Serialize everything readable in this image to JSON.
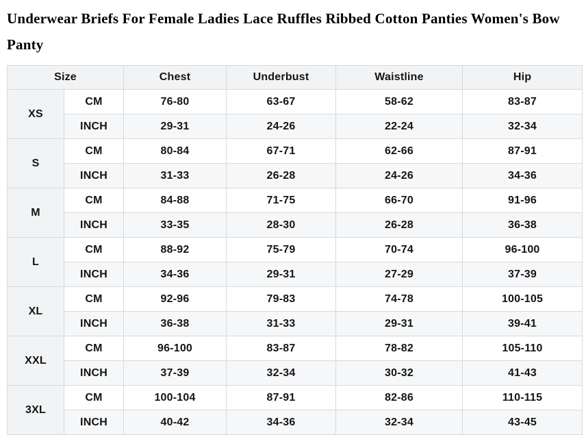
{
  "title": "Underwear Briefs For Female Ladies Lace Ruffles Ribbed Cotton Panties Women's Bow Panty",
  "colors": {
    "header_bg": "#f2f3f5",
    "alt_row_bg": "#f6f7f9",
    "border": "#d8d9db",
    "text": "#141414"
  },
  "table": {
    "headers": [
      "Size",
      "Chest",
      "Underbust",
      "Waistline",
      "Hip"
    ],
    "unit_labels": [
      "CM",
      "INCH"
    ],
    "rows": [
      {
        "size": "XS",
        "cm": [
          "76-80",
          "63-67",
          "58-62",
          "83-87"
        ],
        "inch": [
          "29-31",
          "24-26",
          "22-24",
          "32-34"
        ]
      },
      {
        "size": "S",
        "cm": [
          "80-84",
          "67-71",
          "62-66",
          "87-91"
        ],
        "inch": [
          "31-33",
          "26-28",
          "24-26",
          "34-36"
        ]
      },
      {
        "size": "M",
        "cm": [
          "84-88",
          "71-75",
          "66-70",
          "91-96"
        ],
        "inch": [
          "33-35",
          "28-30",
          "26-28",
          "36-38"
        ]
      },
      {
        "size": "L",
        "cm": [
          "88-92",
          "75-79",
          "70-74",
          "96-100"
        ],
        "inch": [
          "34-36",
          "29-31",
          "27-29",
          "37-39"
        ]
      },
      {
        "size": "XL",
        "cm": [
          "92-96",
          "79-83",
          "74-78",
          "100-105"
        ],
        "inch": [
          "36-38",
          "31-33",
          "29-31",
          "39-41"
        ]
      },
      {
        "size": "XXL",
        "cm": [
          "96-100",
          "83-87",
          "78-82",
          "105-110"
        ],
        "inch": [
          "37-39",
          "32-34",
          "30-32",
          "41-43"
        ]
      },
      {
        "size": "3XL",
        "cm": [
          "100-104",
          "87-91",
          "82-86",
          "110-115"
        ],
        "inch": [
          "40-42",
          "34-36",
          "32-34",
          "43-45"
        ]
      }
    ]
  }
}
